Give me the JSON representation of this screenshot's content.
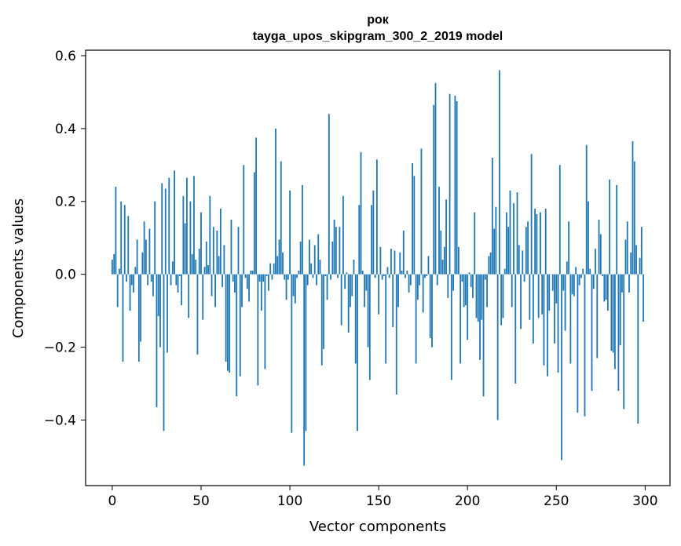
{
  "chart_data": {
    "type": "bar",
    "title_line1": "рок",
    "title_line2": "tayga_upos_skipgram_300_2_2019 model",
    "xlabel": "Vector components",
    "ylabel": "Components values",
    "xlim": [
      -15,
      314
    ],
    "ylim": [
      -0.58,
      0.615
    ],
    "xticks": [
      0,
      50,
      100,
      150,
      200,
      250,
      300
    ],
    "xtick_labels": [
      "0",
      "50",
      "100",
      "150",
      "200",
      "250",
      "300"
    ],
    "yticks": [
      -0.4,
      -0.2,
      0.0,
      0.2,
      0.4,
      0.6
    ],
    "ytick_labels": [
      "−0.4",
      "−0.2",
      "0.0",
      "0.2",
      "0.4",
      "0.6"
    ],
    "bar_color": "#1f77b4",
    "values": [
      0.04,
      0.055,
      0.24,
      -0.09,
      0.015,
      0.2,
      -0.24,
      0.19,
      -0.02,
      0.16,
      -0.1,
      -0.03,
      -0.05,
      0.02,
      0.095,
      -0.24,
      -0.185,
      0.06,
      0.145,
      0.095,
      -0.03,
      0.125,
      -0.02,
      -0.06,
      0.2,
      -0.365,
      -0.115,
      -0.2,
      0.25,
      -0.43,
      0.235,
      -0.215,
      0.265,
      -0.03,
      0.035,
      0.285,
      -0.03,
      -0.05,
      -0.005,
      -0.085,
      0.215,
      0.14,
      0.265,
      -0.12,
      0.2,
      0.055,
      0.27,
      0.04,
      -0.22,
      0.07,
      0.17,
      -0.125,
      0.02,
      0.09,
      0.025,
      0.215,
      -0.06,
      0.13,
      -0.09,
      0.12,
      0.05,
      0.18,
      -0.035,
      0.08,
      -0.24,
      -0.265,
      -0.27,
      0.15,
      -0.02,
      -0.05,
      -0.335,
      0.13,
      -0.28,
      -0.09,
      0.3,
      -0.01,
      -0.04,
      -0.075,
      0.01,
      0.01,
      0.28,
      0.375,
      -0.305,
      -0.02,
      -0.1,
      -0.02,
      -0.26,
      -0.005,
      -0.045,
      0.03,
      -0.015,
      0.03,
      0.4,
      0.05,
      0.095,
      0.31,
      0.06,
      -0.015,
      -0.07,
      -0.015,
      0.23,
      -0.435,
      -0.06,
      -0.08,
      -0.01,
      0.01,
      0.09,
      0.245,
      -0.525,
      -0.43,
      -0.03,
      0.095,
      0.03,
      -0.01,
      0.08,
      -0.03,
      0.11,
      0.04,
      -0.25,
      -0.205,
      -0.005,
      -0.07,
      0.44,
      -0.015,
      0.09,
      0.15,
      0.13,
      -0.01,
      0.13,
      -0.14,
      0.215,
      -0.04,
      0.005,
      -0.16,
      -0.09,
      -0.06,
      0.04,
      -0.245,
      -0.43,
      0.19,
      0.335,
      0.01,
      -0.09,
      -0.045,
      -0.2,
      -0.29,
      0.19,
      0.23,
      -0.01,
      0.315,
      -0.11,
      0.075,
      -0.015,
      -0.005,
      -0.245,
      0.02,
      -0.01,
      0.07,
      -0.145,
      0.065,
      -0.33,
      -0.09,
      0.06,
      0.01,
      0.12,
      -0.01,
      0.01,
      -0.05,
      -0.03,
      0.305,
      0.27,
      -0.245,
      -0.07,
      -0.03,
      0.345,
      -0.105,
      -0.01,
      -0.005,
      0.05,
      -0.175,
      -0.2,
      0.465,
      0.525,
      -0.03,
      0.24,
      0.12,
      0.04,
      0.075,
      0.205,
      -0.065,
      0.495,
      -0.29,
      -0.045,
      0.49,
      0.475,
      0.075,
      -0.245,
      -0.02,
      -0.09,
      -0.085,
      -0.18,
      0.005,
      -0.035,
      -0.065,
      0.17,
      -0.12,
      -0.13,
      -0.235,
      -0.125,
      -0.335,
      -0.015,
      -0.09,
      0.05,
      0.06,
      0.32,
      0.125,
      0.185,
      -0.4,
      0.56,
      -0.14,
      -0.12,
      0.015,
      0.17,
      0.13,
      0.23,
      -0.09,
      0.195,
      -0.3,
      0.225,
      0.08,
      -0.15,
      0.065,
      -0.02,
      0.13,
      0.145,
      -0.125,
      0.33,
      -0.19,
      0.18,
      0.165,
      -0.12,
      0.17,
      -0.11,
      -0.25,
      0.18,
      -0.28,
      -0.1,
      0.0,
      -0.045,
      -0.19,
      -0.08,
      -0.27,
      0.3,
      -0.51,
      -0.045,
      -0.155,
      0.035,
      0.145,
      -0.245,
      -0.055,
      -0.06,
      0.02,
      -0.38,
      -0.03,
      -0.01,
      0.015,
      -0.39,
      0.355,
      0.2,
      0.015,
      -0.32,
      -0.04,
      0.07,
      -0.23,
      0.15,
      0.11,
      -0.005,
      -0.075,
      -0.07,
      -0.1,
      0.26,
      -0.21,
      -0.215,
      -0.26,
      0.245,
      -0.32,
      -0.195,
      -0.05,
      -0.37,
      0.095,
      0.145,
      -0.05,
      0.06,
      0.365,
      0.31,
      0.08,
      -0.41,
      0.045,
      0.13,
      -0.13
    ]
  }
}
